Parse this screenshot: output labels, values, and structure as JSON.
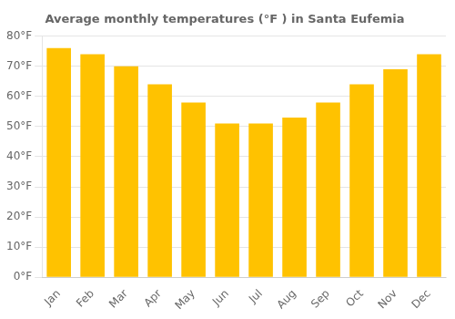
{
  "chart_data": {
    "type": "bar",
    "title": "Average monthly temperatures (°F ) in Santa Eufemia",
    "categories": [
      "Jan",
      "Feb",
      "Mar",
      "Apr",
      "May",
      "Jun",
      "Jul",
      "Aug",
      "Sep",
      "Oct",
      "Nov",
      "Dec"
    ],
    "values": [
      76,
      74,
      70,
      64,
      58,
      51,
      51,
      53,
      58,
      64,
      69,
      74
    ],
    "color": "#FFC200",
    "ylim": [
      0,
      80
    ],
    "yticks": [
      {
        "value": 0,
        "label": "0°F"
      },
      {
        "value": 10,
        "label": "10°F"
      },
      {
        "value": 20,
        "label": "20°F"
      },
      {
        "value": 30,
        "label": "30°F"
      },
      {
        "value": 40,
        "label": "40°F"
      },
      {
        "value": 50,
        "label": "50°F"
      },
      {
        "value": 60,
        "label": "60°F"
      },
      {
        "value": 70,
        "label": "70°F"
      },
      {
        "value": 80,
        "label": "80°F"
      }
    ],
    "grid": true
  }
}
